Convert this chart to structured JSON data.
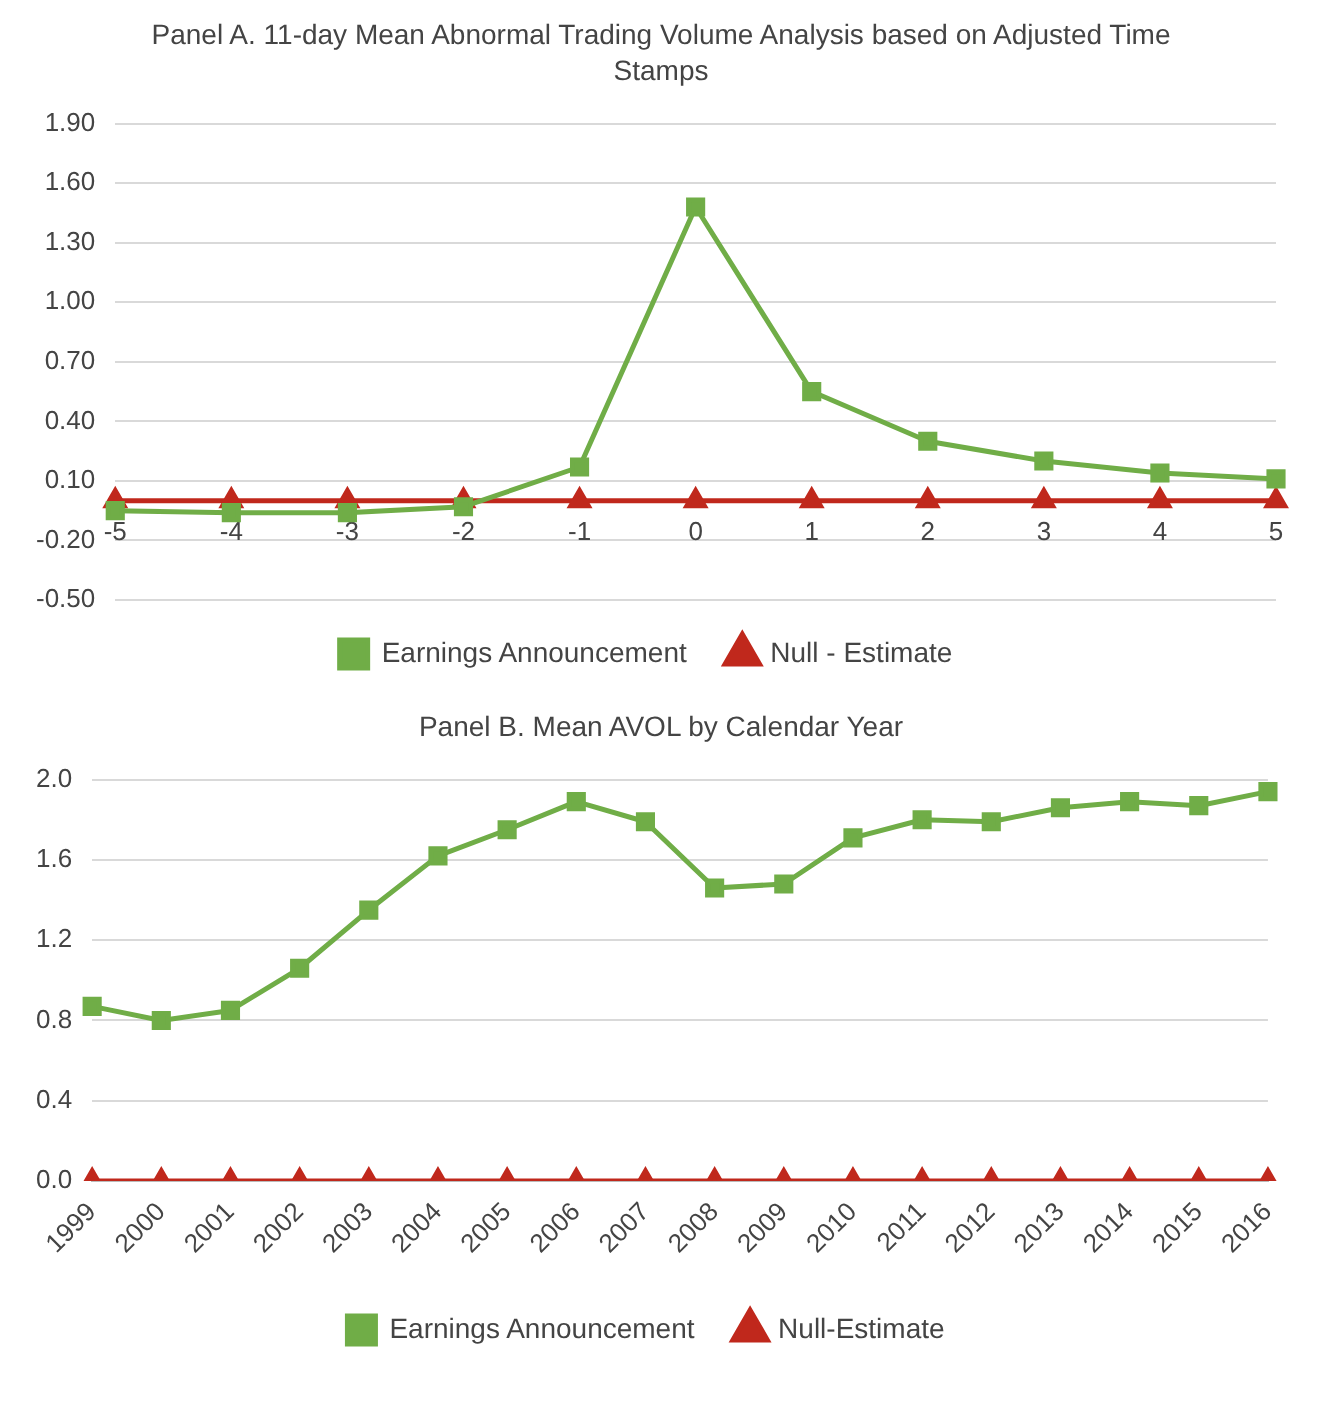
{
  "chart_data": [
    {
      "type": "line",
      "title": "Panel A. 11-day Mean Abnormal Trading Volume Analysis based on Adjusted Time Stamps",
      "categories": [
        "-5",
        "-4",
        "-3",
        "-2",
        "-1",
        "0",
        "1",
        "2",
        "3",
        "4",
        "5"
      ],
      "series": [
        {
          "name": "Earnings Announcement",
          "color": "#70ad47",
          "marker": "square",
          "values": [
            -0.05,
            -0.06,
            -0.06,
            -0.03,
            0.17,
            1.48,
            0.55,
            0.3,
            0.2,
            0.14,
            0.11
          ]
        },
        {
          "name": "Null - Estimate",
          "color": "#c0281c",
          "marker": "triangle",
          "values": [
            0,
            0,
            0,
            0,
            0,
            0,
            0,
            0,
            0,
            0,
            0
          ]
        }
      ],
      "ylim": [
        -0.5,
        1.9
      ],
      "yticks": [
        {
          "value": -0.5,
          "label": "-0.50"
        },
        {
          "value": -0.2,
          "label": "-0.20"
        },
        {
          "value": 0.1,
          "label": "0.10"
        },
        {
          "value": 0.4,
          "label": "0.40"
        },
        {
          "value": 0.7,
          "label": "0.70"
        },
        {
          "value": 1.0,
          "label": "1.00"
        },
        {
          "value": 1.3,
          "label": "1.30"
        },
        {
          "value": 1.6,
          "label": "1.60"
        },
        {
          "value": 1.9,
          "label": "1.90"
        }
      ],
      "grid": "y",
      "legend": "bottom"
    },
    {
      "type": "line",
      "title": "Panel B. Mean AVOL by Calendar Year",
      "categories": [
        "1999",
        "2000",
        "2001",
        "2002",
        "2003",
        "2004",
        "2005",
        "2006",
        "2007",
        "2008",
        "2009",
        "2010",
        "2011",
        "2012",
        "2013",
        "2014",
        "2015",
        "2016"
      ],
      "series": [
        {
          "name": "Earnings Announcement",
          "color": "#70ad47",
          "marker": "square",
          "values": [
            0.87,
            0.8,
            0.85,
            1.06,
            1.35,
            1.62,
            1.75,
            1.89,
            1.79,
            1.46,
            1.48,
            1.71,
            1.8,
            1.79,
            1.86,
            1.89,
            1.87,
            1.94
          ]
        },
        {
          "name": "Null-Estimate",
          "color": "#c0281c",
          "marker": "triangle",
          "values": [
            0,
            0,
            0,
            0,
            0,
            0,
            0,
            0,
            0,
            0,
            0,
            0,
            0,
            0,
            0,
            0,
            0,
            0
          ]
        }
      ],
      "ylim": [
        0,
        2.0
      ],
      "yticks": [
        {
          "value": 0,
          "label": "0.0"
        },
        {
          "value": 0.4,
          "label": "0.4"
        },
        {
          "value": 0.8,
          "label": "0.8"
        },
        {
          "value": 1.2,
          "label": "1.2"
        },
        {
          "value": 1.6,
          "label": "1.6"
        },
        {
          "value": 2.0,
          "label": "2.0"
        }
      ],
      "grid": "y",
      "legend": "bottom"
    }
  ]
}
